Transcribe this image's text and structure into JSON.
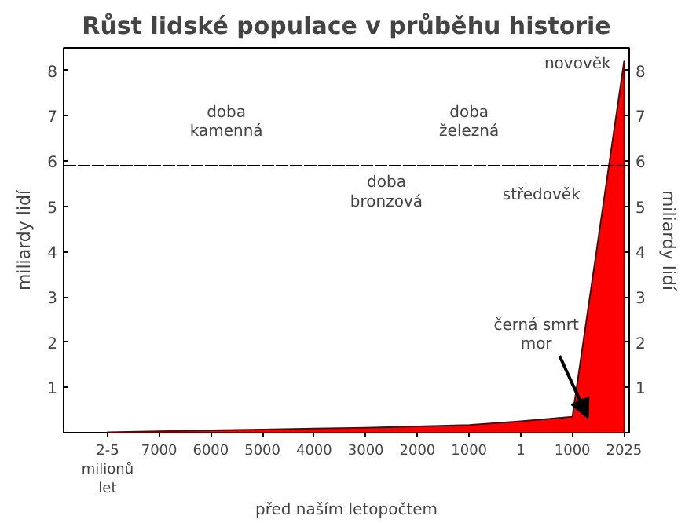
{
  "chart_data": {
    "type": "area",
    "title": "Růst lidské populace v průběhu historie",
    "categories": [
      "2-5 milionů let",
      "7000",
      "6000",
      "5000",
      "4000",
      "3000",
      "2000",
      "1000",
      "1",
      "1000",
      "2025"
    ],
    "values": [
      0.01,
      0.03,
      0.05,
      0.07,
      0.09,
      0.11,
      0.14,
      0.17,
      0.25,
      0.35,
      8.2
    ],
    "color": "#ff0000",
    "ylabel": "miliardy lidí",
    "y2label": "miliardy lidí",
    "ylim": [
      0,
      8.5
    ],
    "yticks": [
      1,
      2,
      3,
      4,
      5,
      6,
      7,
      8
    ],
    "y2lim": [
      0,
      8.5
    ],
    "y2ticks": [
      1,
      2,
      3,
      4,
      5,
      6,
      7,
      8
    ],
    "ref_lines": [
      {
        "axis": "y",
        "value": 5.9,
        "color": "#000000",
        "line_style": "dashed"
      }
    ],
    "annotations": [
      "doba kamenná",
      "doba bronzová",
      "doba železná",
      "středověk",
      "novověk",
      "černá smrt mor",
      "před naším letopočtem"
    ],
    "grid": false
  }
}
